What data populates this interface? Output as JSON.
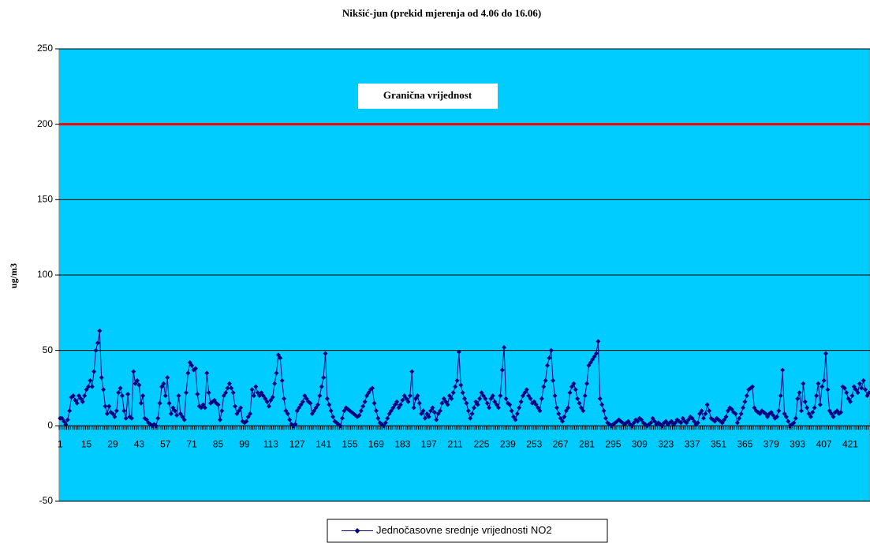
{
  "chart_data": {
    "type": "line",
    "title": "Nikšić-jun (prekid mjerenja od 4.06 do 16.06)",
    "y_label": "ug/m3",
    "ylim": [
      -50,
      250
    ],
    "yticks": [
      -50,
      0,
      50,
      100,
      150,
      200,
      250
    ],
    "grid": true,
    "background": "#00ccff",
    "legend": "bottom",
    "reference_line": {
      "label": "Granična vrijednost",
      "value": 200,
      "color": "#ff0000"
    },
    "categories": [
      1,
      null,
      null,
      null,
      null,
      null,
      null,
      null,
      null,
      null,
      null,
      null,
      null,
      null,
      15,
      null,
      null,
      null,
      null,
      null,
      null,
      null,
      null,
      null,
      null,
      null,
      null,
      null,
      29,
      null,
      null,
      null,
      null,
      null,
      null,
      null,
      null,
      null,
      null,
      null,
      null,
      null,
      43,
      null,
      null,
      null,
      null,
      null,
      null,
      null,
      null,
      null,
      null,
      null,
      null,
      null,
      57,
      null,
      null,
      null,
      null,
      null,
      null,
      null,
      null,
      null,
      null,
      null,
      null,
      null,
      71,
      null,
      null,
      null,
      null,
      null,
      null,
      null,
      null,
      null,
      null,
      null,
      null,
      null,
      85,
      null,
      null,
      null,
      null,
      null,
      null,
      null,
      null,
      null,
      null,
      null,
      null,
      null,
      99,
      null,
      null,
      null,
      null,
      null,
      null,
      null,
      null,
      null,
      null,
      null,
      null,
      null,
      113,
      null,
      null,
      null,
      null,
      null,
      null,
      null,
      null,
      null,
      null,
      null,
      null,
      null,
      127,
      null,
      null,
      null,
      null,
      null,
      null,
      null,
      null,
      null,
      null,
      null,
      null,
      null,
      141,
      null,
      null,
      null,
      null,
      null,
      null,
      null,
      null,
      null,
      null,
      null,
      null,
      null,
      155,
      null,
      null,
      null,
      null,
      null,
      null,
      null,
      null,
      null,
      null,
      null,
      null,
      null,
      169,
      null,
      null,
      null,
      null,
      null,
      null,
      null,
      null,
      null,
      null,
      null,
      null,
      null,
      183,
      null,
      null,
      null,
      null,
      null,
      null,
      null,
      null,
      null,
      null,
      null,
      null,
      null,
      197,
      null,
      null,
      null,
      null,
      null,
      null,
      null,
      null,
      null,
      null,
      null,
      null,
      null,
      211,
      null,
      null,
      null,
      null,
      null,
      null,
      null,
      null,
      null,
      null,
      null,
      null,
      null,
      225,
      null,
      null,
      null,
      null,
      null,
      null,
      null,
      null,
      null,
      null,
      null,
      null,
      null,
      239,
      null,
      null,
      null,
      null,
      null,
      null,
      null,
      null,
      null,
      null,
      null,
      null,
      null,
      253,
      null,
      null,
      null,
      null,
      null,
      null,
      null,
      null,
      null,
      null,
      null,
      null,
      null,
      267,
      null,
      null,
      null,
      null,
      null,
      null,
      null,
      null,
      null,
      null,
      null,
      null,
      null,
      281,
      null,
      null,
      null,
      null,
      null,
      null,
      null,
      null,
      null,
      null,
      null,
      null,
      null,
      295,
      null,
      null,
      null,
      null,
      null,
      null,
      null,
      null,
      null,
      null,
      null,
      null,
      null,
      309,
      null,
      null,
      null,
      null,
      null,
      null,
      null,
      null,
      null,
      null,
      null,
      null,
      null,
      323,
      null,
      null,
      null,
      null,
      null,
      null,
      null,
      null,
      null,
      null,
      null,
      null,
      null,
      337,
      null,
      null,
      null,
      null,
      null,
      null,
      null,
      null,
      null,
      null,
      null,
      null,
      null,
      351,
      null,
      null,
      null,
      null,
      null,
      null,
      null,
      null,
      null,
      null,
      null,
      null,
      null,
      365,
      null,
      null,
      null,
      null,
      null,
      null,
      null,
      null,
      null,
      null,
      null,
      null,
      null,
      379,
      null,
      null,
      null,
      null,
      null,
      null,
      null,
      null,
      null,
      null,
      null,
      null,
      null,
      393,
      null,
      null,
      null,
      null,
      null,
      null,
      null,
      null,
      null,
      null,
      null,
      null,
      null,
      407,
      null,
      null,
      null,
      null,
      null,
      null,
      null,
      null,
      null,
      null,
      null,
      null,
      null,
      421,
      null,
      null,
      null,
      null,
      null,
      null,
      null,
      null,
      null,
      null
    ],
    "series": [
      {
        "name": "Jednočasovne srednje vrijednosti NO2",
        "color": "#000080",
        "values": [
          5,
          5,
          3,
          1,
          4,
          10,
          19,
          20,
          17,
          15,
          20,
          18,
          16,
          20,
          24,
          26,
          30,
          26,
          36,
          50,
          55,
          63,
          32,
          24,
          13,
          8,
          13,
          9,
          8,
          6,
          10,
          22,
          25,
          20,
          10,
          5,
          21,
          6,
          5,
          36,
          28,
          30,
          27,
          15,
          20,
          5,
          4,
          2,
          1,
          0,
          1,
          0,
          5,
          15,
          26,
          28,
          20,
          32,
          15,
          8,
          12,
          10,
          7,
          20,
          8,
          6,
          4,
          22,
          35,
          42,
          40,
          37,
          38,
          21,
          13,
          12,
          14,
          12,
          35,
          22,
          15,
          16,
          17,
          15,
          14,
          4,
          10,
          20,
          22,
          25,
          28,
          25,
          22,
          13,
          8,
          10,
          12,
          3,
          2,
          3,
          6,
          8,
          24,
          20,
          26,
          22,
          20,
          22,
          20,
          18,
          16,
          13,
          17,
          19,
          28,
          35,
          47,
          45,
          30,
          18,
          10,
          8,
          4,
          1,
          0,
          1,
          10,
          12,
          14,
          16,
          20,
          18,
          16,
          15,
          8,
          10,
          12,
          14,
          20,
          26,
          32,
          48,
          18,
          14,
          10,
          6,
          3,
          2,
          1,
          0,
          5,
          10,
          12,
          11,
          10,
          9,
          8,
          7,
          6,
          7,
          10,
          13,
          16,
          20,
          22,
          24,
          25,
          15,
          10,
          5,
          2,
          1,
          0,
          2,
          5,
          8,
          10,
          12,
          14,
          16,
          12,
          14,
          17,
          20,
          18,
          16,
          20,
          36,
          12,
          18,
          20,
          15,
          8,
          10,
          5,
          8,
          6,
          10,
          12,
          9,
          4,
          8,
          10,
          15,
          18,
          16,
          14,
          20,
          18,
          22,
          26,
          30,
          49,
          27,
          22,
          18,
          15,
          10,
          5,
          8,
          12,
          16,
          14,
          18,
          22,
          20,
          18,
          15,
          12,
          18,
          20,
          16,
          14,
          12,
          20,
          37,
          52,
          18,
          15,
          14,
          10,
          6,
          4,
          8,
          12,
          16,
          20,
          22,
          24,
          20,
          18,
          15,
          16,
          14,
          12,
          10,
          18,
          26,
          30,
          40,
          45,
          50,
          30,
          20,
          12,
          8,
          5,
          3,
          6,
          10,
          12,
          22,
          26,
          28,
          24,
          18,
          15,
          12,
          10,
          20,
          28,
          40,
          42,
          44,
          46,
          48,
          56,
          18,
          14,
          10,
          5,
          2,
          1,
          0,
          1,
          2,
          3,
          4,
          3,
          2,
          1,
          2,
          3,
          1,
          0,
          2,
          4,
          3,
          5,
          4,
          2,
          1,
          0,
          1,
          2,
          5,
          3,
          1,
          2,
          1,
          0,
          2,
          3,
          1,
          2,
          3,
          1,
          2,
          4,
          3,
          2,
          5,
          3,
          2,
          4,
          6,
          5,
          3,
          1,
          2,
          8,
          10,
          5,
          8,
          14,
          10,
          5,
          4,
          3,
          5,
          4,
          3,
          2,
          4,
          6,
          10,
          12,
          11,
          9,
          8,
          2,
          5,
          8,
          12,
          16,
          20,
          24,
          25,
          26,
          12,
          10,
          9,
          8,
          10,
          9,
          8,
          6,
          8,
          9,
          7,
          5,
          6,
          10,
          20,
          37,
          8,
          6,
          3,
          0,
          1,
          2,
          5,
          18,
          22,
          10,
          28,
          16,
          12,
          8,
          6,
          9,
          12,
          20,
          28,
          14,
          26,
          30,
          48,
          24,
          10,
          8,
          6,
          9,
          10,
          8,
          9,
          26,
          25,
          22,
          18,
          16,
          20,
          26,
          24,
          22,
          28,
          25,
          30,
          24,
          20,
          22
        ]
      }
    ]
  }
}
